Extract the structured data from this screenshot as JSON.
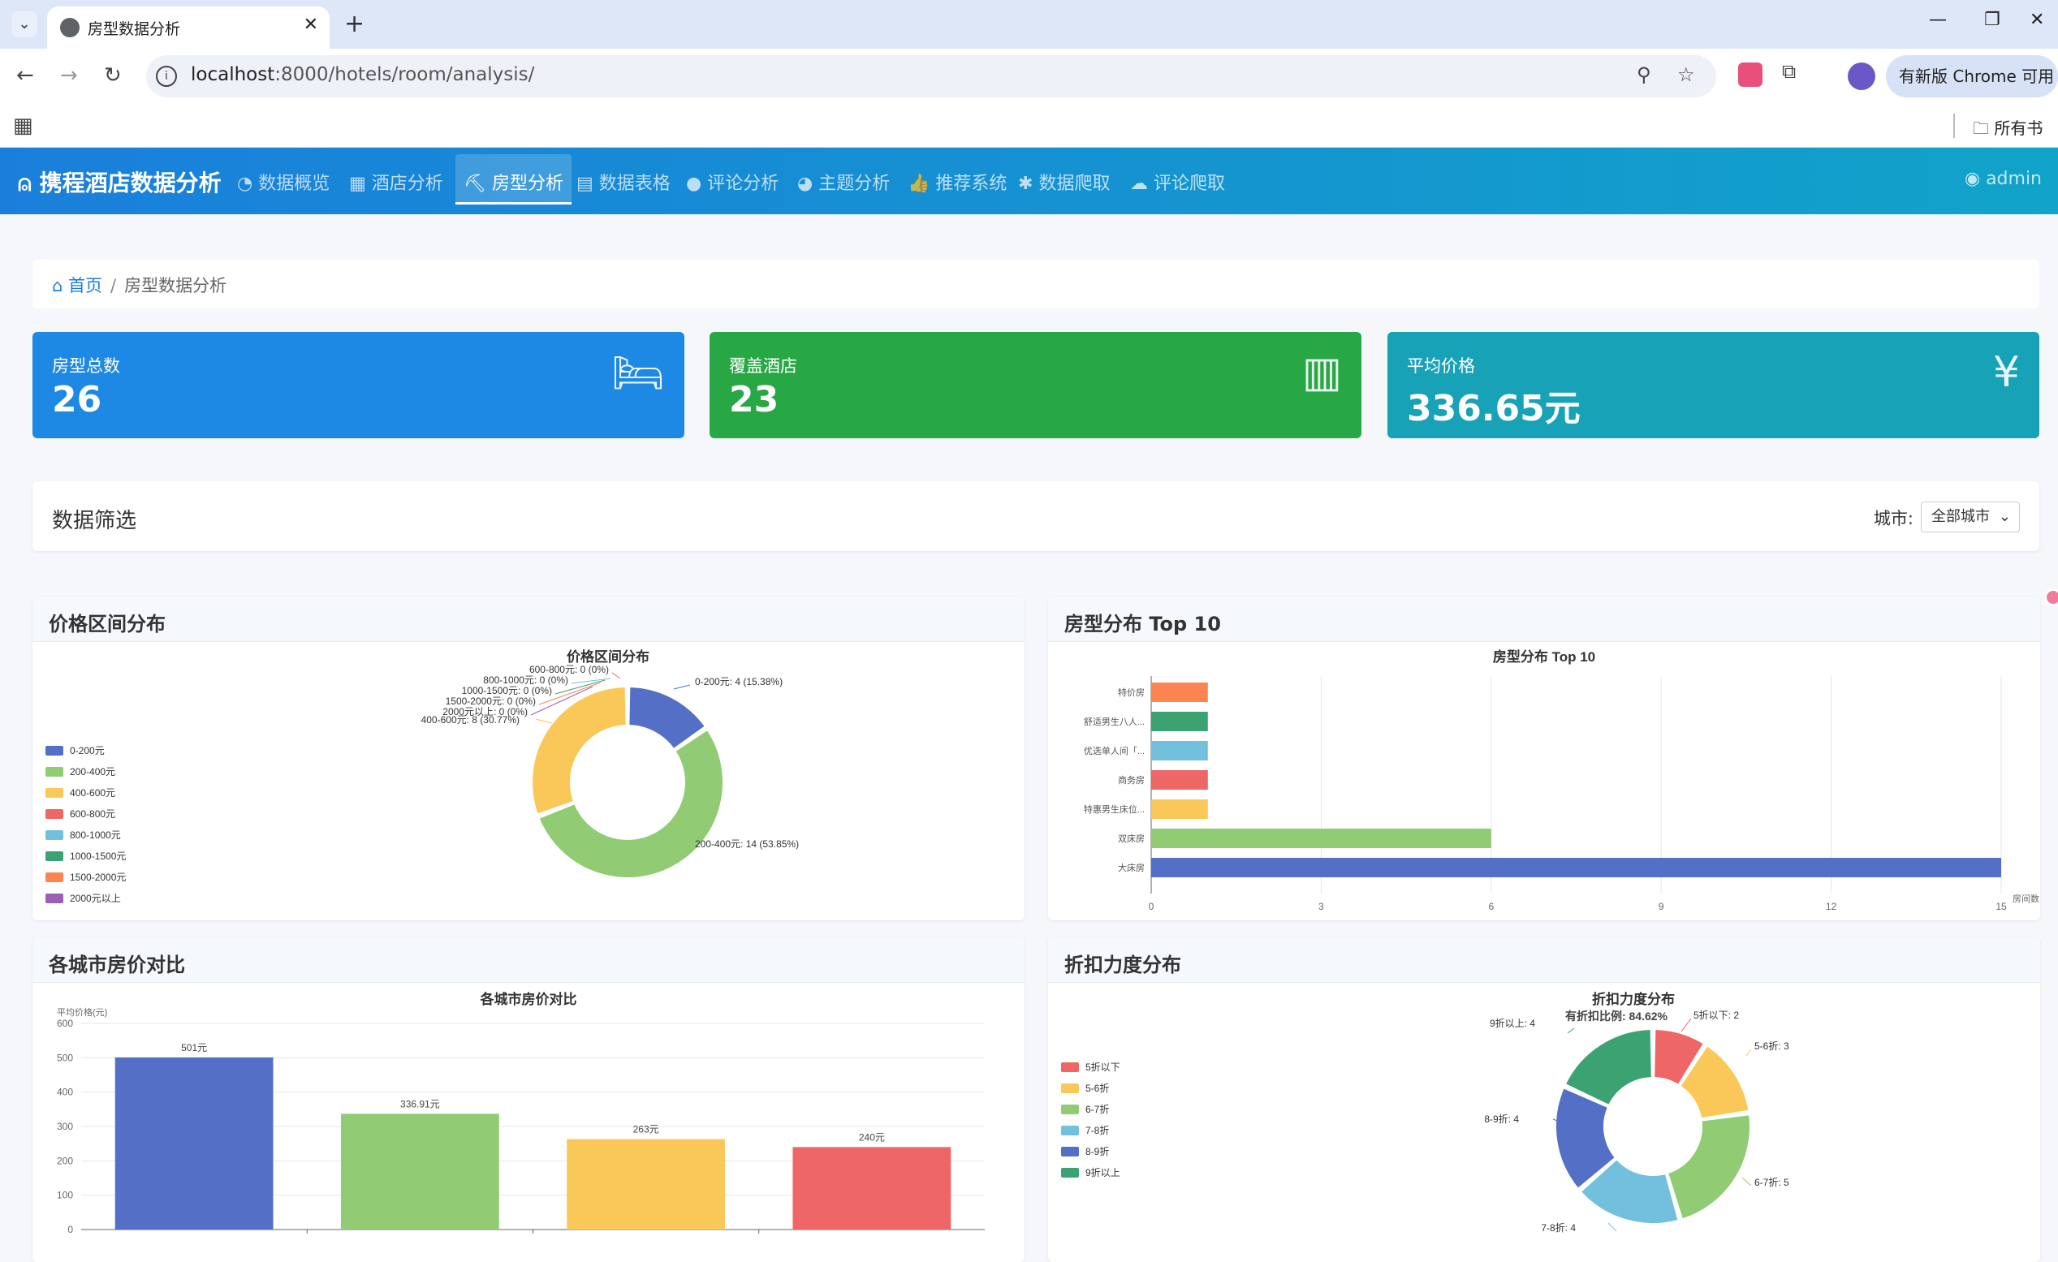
{
  "browser": {
    "tab_title": "房型数据分析",
    "url_host": "localhost",
    "url_rest": ":8000/hotels/room/analysis/",
    "update_label": "有新版 Chrome 可用",
    "bookmarks_label": "所有书签"
  },
  "navbar": {
    "brand": "携程酒店数据分析",
    "items": [
      {
        "icon": "dashboard-icon",
        "label": "数据概览"
      },
      {
        "icon": "building-icon",
        "label": "酒店分析"
      },
      {
        "icon": "bed-icon",
        "label": "房型分析",
        "active": true
      },
      {
        "icon": "table-icon",
        "label": "数据表格"
      },
      {
        "icon": "comment-icon",
        "label": "评论分析"
      },
      {
        "icon": "pie-icon",
        "label": "主题分析"
      },
      {
        "icon": "thumbs-up-icon",
        "label": "推荐系统"
      },
      {
        "icon": "spider-icon",
        "label": "数据爬取"
      },
      {
        "icon": "comments-icon",
        "label": "评论爬取"
      }
    ],
    "user": "admin"
  },
  "breadcrumb": {
    "home": "首页",
    "sep": "/",
    "current": "房型数据分析"
  },
  "stats": [
    {
      "label": "房型总数",
      "value": "26",
      "color": "#1e88e5",
      "icon": "bed-icon"
    },
    {
      "label": "覆盖酒店",
      "value": "23",
      "color": "#28a745",
      "icon": "hotel-icon"
    },
    {
      "label": "平均价格",
      "value": "336.65元",
      "color": "#17a2b8",
      "icon": "yen-icon"
    }
  ],
  "filter": {
    "title": "数据筛选",
    "city_label": "城市:",
    "city_value": "全部城市"
  },
  "cards": {
    "price": "价格区间分布",
    "room": "房型分布 Top 10",
    "city": "各城市房价对比",
    "discount": "折扣力度分布"
  },
  "chart_data": [
    {
      "type": "pie",
      "title": "价格区间分布",
      "legend_position": "left",
      "categories": [
        "0-200元",
        "200-400元",
        "400-600元",
        "600-800元",
        "800-1000元",
        "1000-1500元",
        "1500-2000元",
        "2000元以上"
      ],
      "values": [
        4,
        14,
        8,
        0,
        0,
        0,
        0,
        0
      ],
      "colors": [
        "#5470c6",
        "#91cc75",
        "#fac858",
        "#ee6666",
        "#73c0de",
        "#3ba272",
        "#fc8452",
        "#9a60b4"
      ],
      "labels": [
        "0-200元: 4 (15.38%)",
        "200-400元: 14 (53.85%)",
        "400-600元: 8 (30.77%)",
        "600-800元: 0 (0%)",
        "800-1000元: 0 (0%)",
        "1000-1500元: 0 (0%)",
        "1500-2000元: 0 (0%)",
        "2000元以上: 0 (0%)"
      ]
    },
    {
      "type": "bar",
      "orientation": "horizontal",
      "title": "房型分布 Top 10",
      "categories": [
        "大床房",
        "双床房",
        "特惠男生床位...",
        "商务房",
        "优选单人间「...",
        "舒适男生八人...",
        "特价房"
      ],
      "values": [
        15,
        6,
        1,
        1,
        1,
        1,
        1
      ],
      "colors": [
        "#5470c6",
        "#91cc75",
        "#fac858",
        "#ee6666",
        "#73c0de",
        "#3ba272",
        "#fc8452"
      ],
      "xlim": [
        0,
        15
      ],
      "xticks": [
        "0",
        "3",
        "6",
        "9",
        "12",
        "15"
      ],
      "xlabel": "房间数",
      "grid": true
    },
    {
      "type": "bar",
      "title": "各城市房价对比",
      "ylabel": "平均价格(元)",
      "categories": [
        "",
        "",
        "",
        ""
      ],
      "values": [
        501,
        336.91,
        263,
        240
      ],
      "value_labels": [
        "501元",
        "336.91元",
        "263元",
        "240元"
      ],
      "colors": [
        "#5470c6",
        "#91cc75",
        "#fac858",
        "#ee6666"
      ],
      "ylim": [
        0,
        600
      ],
      "yticks": [
        "0",
        "100",
        "200",
        "300",
        "400",
        "500",
        "600"
      ],
      "grid": true
    },
    {
      "type": "pie",
      "title": "折扣力度分布",
      "subtitle": "有折扣比例: 84.62%",
      "legend_position": "left",
      "categories": [
        "5折以下",
        "5-6折",
        "6-7折",
        "7-8折",
        "8-9折",
        "9折以上"
      ],
      "values": [
        2,
        3,
        5,
        4,
        4,
        4
      ],
      "colors": [
        "#ee6666",
        "#fac858",
        "#91cc75",
        "#73c0de",
        "#5470c6",
        "#3ba272"
      ],
      "labels": [
        "5折以下: 2",
        "5-6折: 3",
        "6-7折: 5",
        "7-8折: 4",
        "8-9折: 4",
        "9折以上: 4"
      ]
    }
  ]
}
